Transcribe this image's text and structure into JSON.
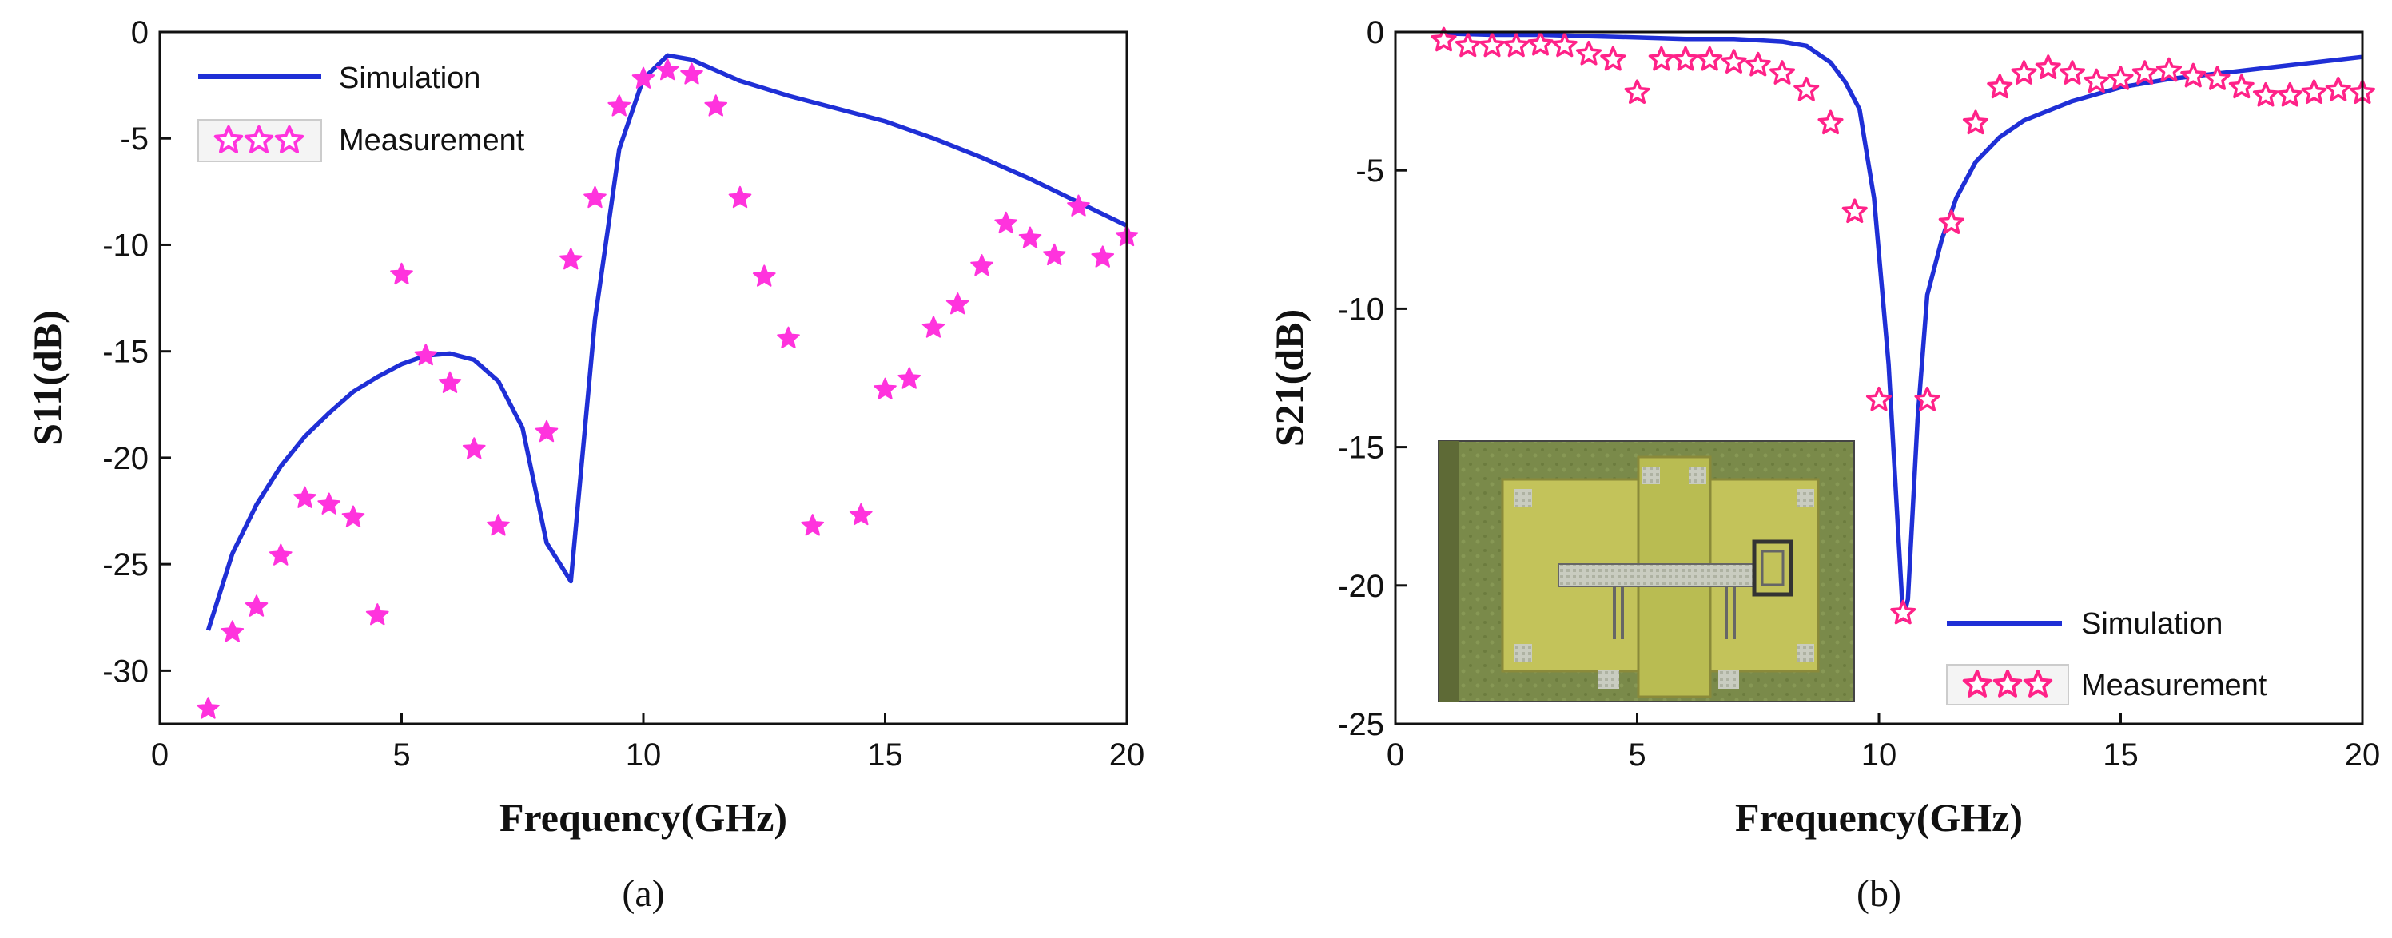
{
  "chart_data": [
    {
      "type": "line",
      "panel": "(a)",
      "xlabel": "Frequency(GHz)",
      "ylabel": "S11(dB)",
      "xlim": [
        0,
        20
      ],
      "ylim": [
        -32.5,
        0
      ],
      "xticks": [
        0,
        5,
        10,
        15,
        20
      ],
      "yticks": [
        0,
        -5,
        -10,
        -15,
        -20,
        -25,
        -30
      ],
      "series": [
        {
          "name": "Simulation",
          "style": "line",
          "color": "#1f2fd6",
          "x": [
            1,
            1.5,
            2,
            2.5,
            3,
            3.5,
            4,
            4.5,
            5,
            5.5,
            6,
            6.5,
            7,
            7.5,
            8,
            8.5,
            9,
            9.5,
            10,
            10.5,
            11,
            11.5,
            12,
            13,
            14,
            15,
            16,
            17,
            18,
            19,
            20
          ],
          "y": [
            -28.1,
            -24.5,
            -22.2,
            -20.4,
            -19,
            -17.9,
            -16.9,
            -16.2,
            -15.6,
            -15.2,
            -15.1,
            -15.4,
            -16.4,
            -18.6,
            -24,
            -25.8,
            -13.5,
            -5.5,
            -2.2,
            -1.1,
            -1.3,
            -1.8,
            -2.3,
            -3,
            -3.6,
            -4.2,
            -5,
            -5.9,
            -6.9,
            -8,
            -9.1
          ]
        },
        {
          "name": "Measurement",
          "style": "star",
          "color": "#ff33dd",
          "x": [
            1,
            1.5,
            2,
            2.5,
            3,
            3.5,
            4,
            4.5,
            5,
            5.5,
            6,
            6.5,
            7,
            8,
            8.5,
            9,
            9.5,
            10,
            10.5,
            11,
            11.5,
            12,
            12.5,
            13,
            13.5,
            14.5,
            15,
            15.5,
            16,
            16.5,
            17,
            17.5,
            18,
            18.5,
            19,
            19.5,
            20
          ],
          "y": [
            -31.8,
            -28.2,
            -27,
            -24.6,
            -21.9,
            -22.2,
            -22.8,
            -27.4,
            -11.4,
            -15.2,
            -16.5,
            -19.6,
            -23.2,
            -18.8,
            -10.7,
            -7.8,
            -3.5,
            -2.2,
            -1.8,
            -2,
            -3.5,
            -7.8,
            -11.5,
            -14.4,
            -23.2,
            -22.7,
            -16.8,
            -16.3,
            -13.9,
            -12.8,
            -11,
            -9,
            -9.7,
            -10.5,
            -8.2,
            -10.6,
            -9.6
          ]
        }
      ]
    },
    {
      "type": "line",
      "panel": "(b)",
      "xlabel": "Frequency(GHz)",
      "ylabel": "S21(dB)",
      "xlim": [
        0,
        20
      ],
      "ylim": [
        -25,
        0
      ],
      "xticks": [
        0,
        5,
        10,
        15,
        20
      ],
      "yticks": [
        0,
        -5,
        -10,
        -15,
        -20,
        -25
      ],
      "inset": "photo of fabricated circuit",
      "series": [
        {
          "name": "Simulation",
          "style": "line",
          "color": "#1f2fd6",
          "x": [
            1,
            2,
            3,
            4,
            5,
            6,
            7,
            7.5,
            8,
            8.5,
            9,
            9.3,
            9.6,
            9.9,
            10.2,
            10.5,
            10.6,
            10.8,
            11,
            11.3,
            11.6,
            12,
            12.5,
            13,
            14,
            15,
            16,
            17,
            18,
            19,
            20
          ],
          "y": [
            -0.05,
            -0.1,
            -0.1,
            -0.15,
            -0.2,
            -0.25,
            -0.25,
            -0.3,
            -0.35,
            -0.5,
            -1.1,
            -1.8,
            -2.8,
            -6,
            -12,
            -21.2,
            -20.5,
            -14,
            -9.5,
            -7.5,
            -6,
            -4.7,
            -3.8,
            -3.2,
            -2.5,
            -2,
            -1.7,
            -1.5,
            -1.3,
            -1.1,
            -0.9
          ]
        },
        {
          "name": "Measurement",
          "style": "star",
          "color": "#ff2288",
          "x": [
            1,
            1.5,
            2,
            2.5,
            3,
            3.5,
            4,
            4.5,
            5,
            5.5,
            6,
            6.5,
            7,
            7.5,
            8,
            8.5,
            9,
            9.5,
            10,
            10.5,
            11,
            11.5,
            12,
            12.5,
            13,
            13.5,
            14,
            14.5,
            15,
            15.5,
            16,
            16.5,
            17,
            17.5,
            18,
            18.5,
            19,
            19.5,
            20
          ],
          "y": [
            -0.3,
            -0.5,
            -0.5,
            -0.5,
            -0.45,
            -0.5,
            -0.8,
            -1,
            -2.2,
            -1,
            -1,
            -1,
            -1.1,
            -1.2,
            -1.5,
            -2.1,
            -3.3,
            -6.5,
            -13.3,
            -21,
            -13.3,
            -6.9,
            -3.3,
            -2,
            -1.5,
            -1.3,
            -1.5,
            -1.8,
            -1.7,
            -1.5,
            -1.4,
            -1.6,
            -1.7,
            -2,
            -2.3,
            -2.3,
            -2.2,
            -2.1,
            -2.2
          ]
        }
      ]
    }
  ]
}
